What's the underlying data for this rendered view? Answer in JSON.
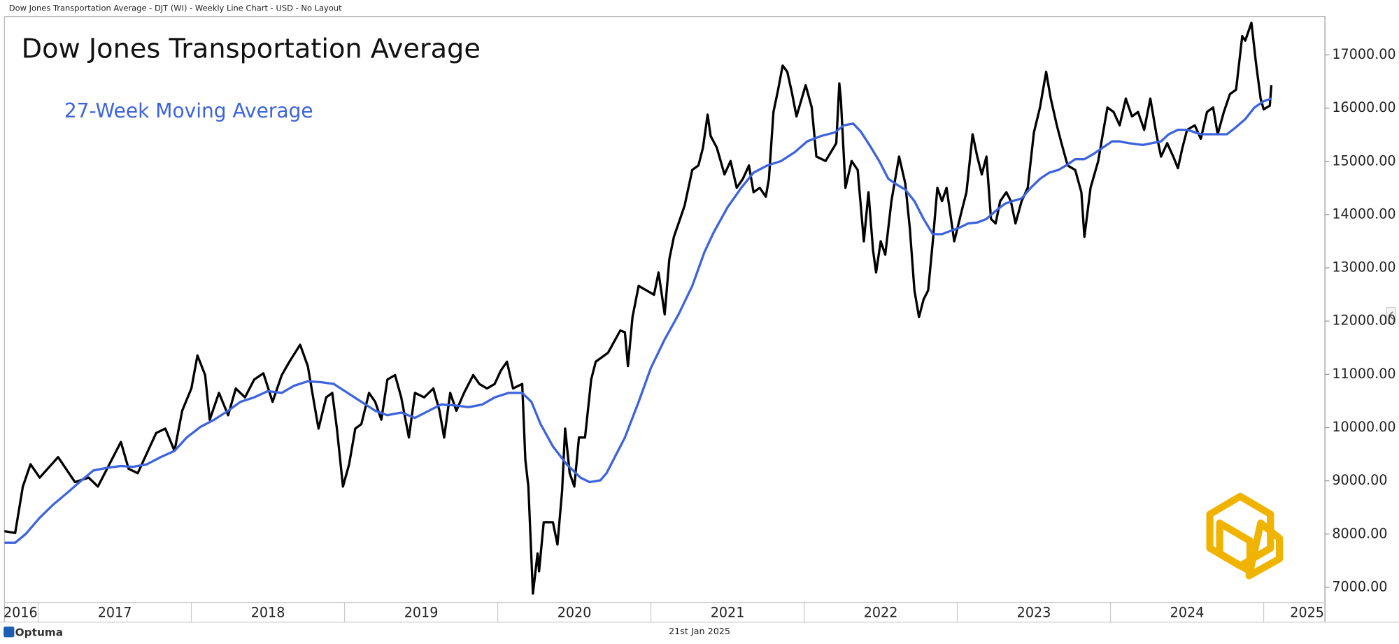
{
  "header": "Dow Jones Transportation Average - DJT (WI) - Weekly Line Chart - USD - No Layout",
  "footer": {
    "brand": "Optuma",
    "date": "21st Jan 2025"
  },
  "chart_data": {
    "type": "line",
    "title": "Dow Jones Transportation Average",
    "xlim": [
      2016.78,
      2025.4
    ],
    "xticks": [
      {
        "value": 2016,
        "label": "2016"
      },
      {
        "value": 2017,
        "label": "2017"
      },
      {
        "value": 2018,
        "label": "2018"
      },
      {
        "value": 2019,
        "label": "2019"
      },
      {
        "value": 2020,
        "label": "2020"
      },
      {
        "value": 2021,
        "label": "2021"
      },
      {
        "value": 2022,
        "label": "2022"
      },
      {
        "value": 2023,
        "label": "2023"
      },
      {
        "value": 2024,
        "label": "2024"
      },
      {
        "value": 2025,
        "label": "2025"
      }
    ],
    "ylim": [
      6715,
      17720
    ],
    "yticks": [
      {
        "value": 7000,
        "label": "7000.00"
      },
      {
        "value": 8000,
        "label": "8000.00"
      },
      {
        "value": 9000,
        "label": "9000.00"
      },
      {
        "value": 10000,
        "label": "10000.00"
      },
      {
        "value": 11000,
        "label": "11000.00"
      },
      {
        "value": 12000,
        "label": "12000.00"
      },
      {
        "value": 13000,
        "label": "13000.00"
      },
      {
        "value": 14000,
        "label": "14000.00"
      },
      {
        "value": 15000,
        "label": "15000.00"
      },
      {
        "value": 16000,
        "label": "16000.00"
      },
      {
        "value": 17000,
        "label": "17000.00"
      }
    ],
    "grid": false,
    "series": [
      {
        "color": "#000000",
        "x": [
          2016.78,
          2016.85,
          2016.9,
          2016.95,
          2017.01,
          2017.13,
          2017.24,
          2017.33,
          2017.39,
          2017.54,
          2017.59,
          2017.65,
          2017.77,
          2017.83,
          2017.89,
          2017.94,
          2018.0,
          2018.04,
          2018.09,
          2018.12,
          2018.18,
          2018.24,
          2018.29,
          2018.35,
          2018.41,
          2018.47,
          2018.53,
          2018.59,
          2018.64,
          2018.71,
          2018.76,
          2018.8,
          2018.83,
          2018.88,
          2018.92,
          2018.95,
          2018.99,
          2019.03,
          2019.07,
          2019.11,
          2019.16,
          2019.2,
          2019.24,
          2019.28,
          2019.33,
          2019.37,
          2019.42,
          2019.46,
          2019.52,
          2019.58,
          2019.62,
          2019.65,
          2019.69,
          2019.73,
          2019.78,
          2019.84,
          2019.88,
          2019.93,
          2019.98,
          2020.02,
          2020.06,
          2020.1,
          2020.16,
          2020.18,
          2020.2,
          2020.23,
          2020.26,
          2020.27,
          2020.3,
          2020.36,
          2020.39,
          2020.42,
          2020.44,
          2020.47,
          2020.5,
          2020.53,
          2020.57,
          2020.61,
          2020.64,
          2020.72,
          2020.8,
          2020.83,
          2020.85,
          2020.88,
          2020.92,
          2021.02,
          2021.05,
          2021.09,
          2021.12,
          2021.15,
          2021.19,
          2021.22,
          2021.27,
          2021.31,
          2021.34,
          2021.37,
          2021.39,
          2021.43,
          2021.48,
          2021.52,
          2021.56,
          2021.6,
          2021.64,
          2021.67,
          2021.71,
          2021.75,
          2021.77,
          2021.8,
          2021.83,
          2021.86,
          2021.89,
          2021.92,
          2021.95,
          2022.01,
          2022.05,
          2022.08,
          2022.14,
          2022.21,
          2022.23,
          2022.24,
          2022.27,
          2022.31,
          2022.35,
          2022.39,
          2022.42,
          2022.45,
          2022.47,
          2022.5,
          2022.53,
          2022.57,
          2022.62,
          2022.66,
          2022.69,
          2022.72,
          2022.75,
          2022.78,
          2022.81,
          2022.84,
          2022.87,
          2022.9,
          2022.93,
          2022.98,
          2023.03,
          2023.06,
          2023.1,
          2023.13,
          2023.16,
          2023.19,
          2023.22,
          2023.25,
          2023.28,
          2023.32,
          2023.35,
          2023.38,
          2023.42,
          2023.46,
          2023.5,
          2023.54,
          2023.58,
          2023.61,
          2023.65,
          2023.68,
          2023.72,
          2023.77,
          2023.81,
          2023.83,
          2023.87,
          2023.92,
          2023.95,
          2023.98,
          2024.02,
          2024.06,
          2024.1,
          2024.14,
          2024.18,
          2024.22,
          2024.26,
          2024.3,
          2024.33,
          2024.37,
          2024.41,
          2024.44,
          2024.47,
          2024.5,
          2024.55,
          2024.59,
          2024.63,
          2024.67,
          2024.7,
          2024.74,
          2024.78,
          2024.82,
          2024.86,
          2024.88,
          2024.92,
          2024.95,
          2024.98,
          2025.0,
          2025.04,
          2025.05
        ],
        "values": [
          8055,
          8020,
          8893,
          9312,
          9060,
          9446,
          8977,
          9060,
          8893,
          9730,
          9228,
          9144,
          9898,
          9982,
          9563,
          10317,
          10735,
          11355,
          10987,
          10149,
          10652,
          10233,
          10735,
          10568,
          10903,
          11020,
          10484,
          10987,
          11238,
          11556,
          11154,
          10484,
          9982,
          10568,
          10652,
          9982,
          8893,
          9312,
          9982,
          10065,
          10652,
          10484,
          10149,
          10903,
          10987,
          10568,
          9814,
          10652,
          10568,
          10735,
          10317,
          9814,
          10652,
          10317,
          10652,
          10987,
          10819,
          10735,
          10819,
          11070,
          11238,
          10735,
          10819,
          9395,
          8893,
          6883,
          7637,
          7302,
          8223,
          8223,
          7804,
          8809,
          9982,
          9144,
          8893,
          9814,
          9814,
          10903,
          11238,
          11405,
          11824,
          11791,
          11154,
          12075,
          12662,
          12494,
          12913,
          12126,
          13164,
          13583,
          13918,
          14169,
          14839,
          14923,
          15258,
          15878,
          15476,
          15258,
          14755,
          15007,
          14504,
          14672,
          14923,
          14420,
          14504,
          14337,
          14672,
          15928,
          16347,
          16799,
          16682,
          16296,
          15844,
          16430,
          16012,
          15090,
          15007,
          15342,
          16464,
          16179,
          14504,
          15007,
          14839,
          13499,
          14420,
          13332,
          12913,
          13499,
          13248,
          14253,
          15090,
          14588,
          13750,
          12578,
          12075,
          12410,
          12578,
          13499,
          14504,
          14253,
          14504,
          13499,
          14085,
          14420,
          15509,
          15090,
          14755,
          15090,
          13918,
          13834,
          14253,
          14420,
          14253,
          13834,
          14253,
          14504,
          15543,
          16012,
          16682,
          16179,
          15677,
          15342,
          14923,
          14839,
          14420,
          13583,
          14504,
          15007,
          15509,
          16012,
          15928,
          15677,
          16179,
          15844,
          15928,
          15593,
          16179,
          15509,
          15090,
          15342,
          15090,
          14873,
          15258,
          15593,
          15677,
          15425,
          15928,
          16012,
          15509,
          15928,
          16263,
          16347,
          17352,
          17268,
          17603,
          16849,
          16179,
          15978,
          16045,
          16430
        ]
      },
      {
        "name": "27-Week Moving Average",
        "color": "#3d63dd",
        "x": [
          2016.78,
          2016.85,
          2016.92,
          2017.01,
          2017.1,
          2017.19,
          2017.27,
          2017.36,
          2017.45,
          2017.54,
          2017.62,
          2017.71,
          2017.8,
          2017.89,
          2017.97,
          2018.06,
          2018.15,
          2018.24,
          2018.32,
          2018.41,
          2018.5,
          2018.59,
          2018.67,
          2018.76,
          2018.85,
          2018.93,
          2019.02,
          2019.11,
          2019.2,
          2019.28,
          2019.37,
          2019.46,
          2019.55,
          2019.63,
          2019.72,
          2019.81,
          2019.9,
          2019.98,
          2020.07,
          2020.16,
          2020.22,
          2020.28,
          2020.36,
          2020.45,
          2020.54,
          2020.6,
          2020.67,
          2020.71,
          2020.77,
          2020.83,
          2020.92,
          2021.0,
          2021.09,
          2021.18,
          2021.27,
          2021.35,
          2021.41,
          2021.5,
          2021.59,
          2021.67,
          2021.76,
          2021.85,
          2021.94,
          2022.02,
          2022.11,
          2022.2,
          2022.26,
          2022.32,
          2022.37,
          2022.43,
          2022.49,
          2022.55,
          2022.61,
          2022.66,
          2022.72,
          2022.78,
          2022.84,
          2022.9,
          2022.96,
          2023.01,
          2023.07,
          2023.13,
          2023.19,
          2023.25,
          2023.31,
          2023.36,
          2023.42,
          2023.48,
          2023.54,
          2023.6,
          2023.66,
          2023.71,
          2023.77,
          2023.83,
          2023.89,
          2023.95,
          2024.01,
          2024.06,
          2024.12,
          2024.21,
          2024.27,
          2024.33,
          2024.38,
          2024.44,
          2024.5,
          2024.59,
          2024.68,
          2024.76,
          2024.82,
          2024.88,
          2024.94,
          2025.0,
          2025.05
        ],
        "values": [
          7838,
          7838,
          8005,
          8307,
          8558,
          8776,
          8977,
          9194,
          9245,
          9278,
          9262,
          9312,
          9446,
          9563,
          9814,
          10015,
          10149,
          10317,
          10484,
          10568,
          10685,
          10652,
          10786,
          10869,
          10853,
          10819,
          10652,
          10484,
          10317,
          10233,
          10283,
          10183,
          10317,
          10434,
          10417,
          10384,
          10434,
          10568,
          10652,
          10652,
          10484,
          10065,
          9647,
          9312,
          9060,
          8977,
          9010,
          9144,
          9479,
          9814,
          10484,
          11121,
          11657,
          12126,
          12662,
          13298,
          13667,
          14136,
          14504,
          14789,
          14923,
          15007,
          15174,
          15375,
          15476,
          15543,
          15677,
          15710,
          15559,
          15291,
          15007,
          14672,
          14554,
          14471,
          14253,
          13918,
          13633,
          13633,
          13700,
          13750,
          13834,
          13851,
          13918,
          14069,
          14203,
          14253,
          14303,
          14504,
          14672,
          14789,
          14839,
          14923,
          15040,
          15040,
          15141,
          15258,
          15375,
          15375,
          15342,
          15308,
          15342,
          15375,
          15509,
          15593,
          15593,
          15509,
          15509,
          15509,
          15643,
          15794,
          16012,
          16129,
          16179
        ]
      }
    ]
  }
}
